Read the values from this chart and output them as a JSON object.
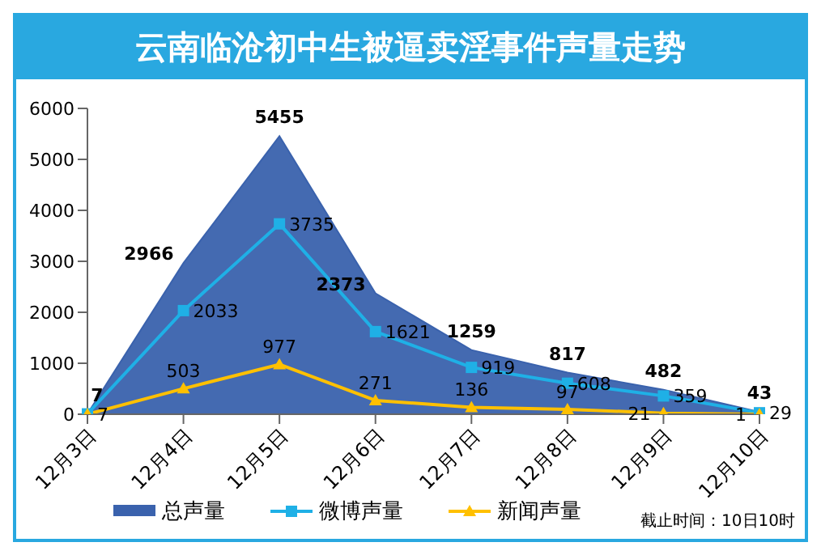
{
  "chart_data": {
    "type": "line",
    "title": "云南临沧初中生被逼卖淫事件声量走势",
    "categories": [
      "12月3日",
      "12月4日",
      "12月5日",
      "12月6日",
      "12月7日",
      "12月8日",
      "12月9日",
      "12月10日"
    ],
    "series": [
      {
        "name": "总声量",
        "type": "area",
        "color": "#3a62ad",
        "values": [
          7,
          2966,
          5455,
          2373,
          1259,
          817,
          482,
          43
        ],
        "value_labels": [
          "7",
          "2966",
          "5455",
          "2373",
          "1259",
          "817",
          "482",
          "43"
        ]
      },
      {
        "name": "微博声量",
        "color": "#1fb0e6",
        "marker": "square",
        "values": [
          7,
          2033,
          3735,
          1621,
          919,
          608,
          359,
          29
        ],
        "value_labels": [
          "7",
          "2033",
          "3735",
          "1621",
          "919",
          "608",
          "359",
          "29"
        ]
      },
      {
        "name": "新闻声量",
        "color": "#ffc000",
        "marker": "triangle",
        "values": [
          0,
          503,
          977,
          271,
          136,
          97,
          21,
          1
        ],
        "value_labels": [
          null,
          "503",
          "977",
          "271",
          "136",
          "97",
          "21",
          "1"
        ]
      }
    ],
    "ylim": [
      0,
      6000
    ],
    "yticks": [
      0,
      1000,
      2000,
      3000,
      4000,
      5000,
      6000
    ],
    "legend": "bottom",
    "annotations": [
      "截止时间：10日10时"
    ]
  }
}
